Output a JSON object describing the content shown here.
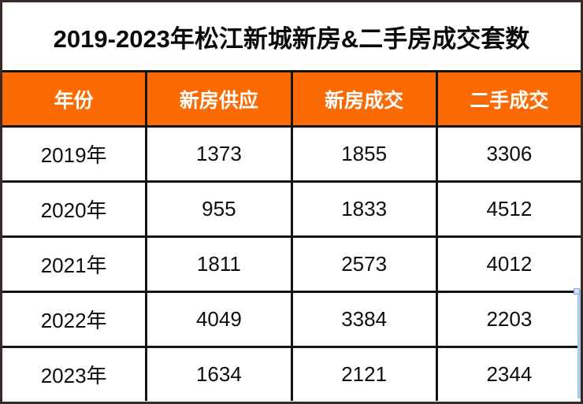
{
  "title": "2019-2023年松江新城新房&二手房成交套数",
  "table": {
    "headers": [
      "年份",
      "新房供应",
      "新房成交",
      "二手成交"
    ],
    "rows": [
      {
        "cells": [
          "2019年",
          "1373",
          "1855",
          "3306"
        ]
      },
      {
        "cells": [
          "2020年",
          "955",
          "1833",
          "4512"
        ]
      },
      {
        "cells": [
          "2021年",
          "1811",
          "2573",
          "4012"
        ]
      },
      {
        "cells": [
          "2022年",
          "4049",
          "3384",
          "2203"
        ]
      },
      {
        "cells": [
          "2023年",
          "1634",
          "2121",
          "2344"
        ]
      }
    ]
  },
  "colors": {
    "header_background": "#fb6a03",
    "header_text": "#ffffff",
    "grid_line": "#141414",
    "outer_frame": "#372a27",
    "body_text": "#0d0d0d",
    "selection_artifact": "#a9c9ec"
  },
  "chart_data": {
    "type": "table",
    "title": "2019-2023年松江新城新房&二手房成交套数",
    "categories": [
      "2019年",
      "2020年",
      "2021年",
      "2022年",
      "2023年"
    ],
    "series": [
      {
        "name": "新房供应",
        "values": [
          1373,
          955,
          1811,
          4049,
          1634
        ]
      },
      {
        "name": "新房成交",
        "values": [
          1855,
          1833,
          2573,
          3384,
          2121
        ]
      },
      {
        "name": "二手成交",
        "values": [
          3306,
          4512,
          4012,
          2203,
          2344
        ]
      }
    ],
    "xlabel": "年份",
    "ylabel": "成交套数"
  }
}
